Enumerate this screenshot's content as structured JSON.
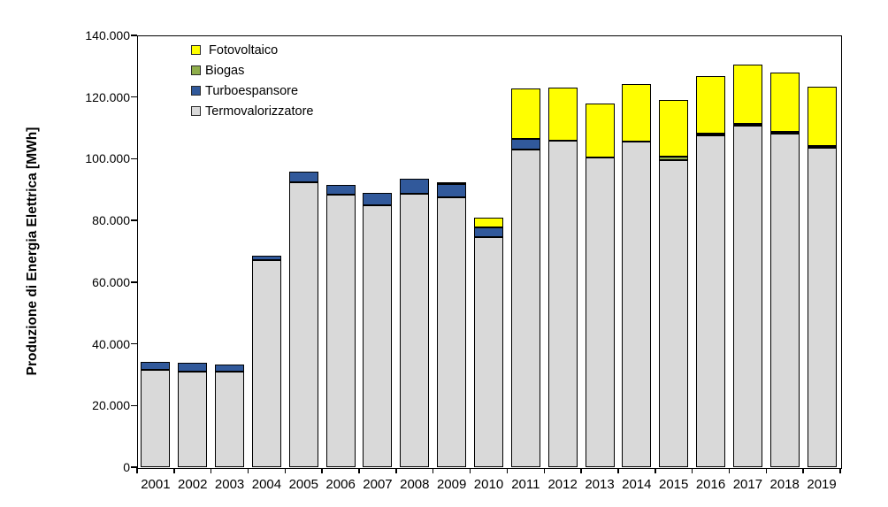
{
  "chart_data": {
    "type": "bar",
    "stacked": true,
    "title": "",
    "xlabel": "",
    "ylabel": "Produzione di Energia Elettrica [MWh]",
    "ylim": [
      0,
      140000
    ],
    "ytick_step": 20000,
    "grid": false,
    "background_color": "#FFFFFF",
    "bar_outline_color": "#000000",
    "axis_color": "#000000",
    "yticks": [
      {
        "value": 0,
        "label": "0"
      },
      {
        "value": 20000,
        "label": "20.000"
      },
      {
        "value": 40000,
        "label": "40.000"
      },
      {
        "value": 60000,
        "label": "60.000"
      },
      {
        "value": 80000,
        "label": "80.000"
      },
      {
        "value": 100000,
        "label": "100.000"
      },
      {
        "value": 120000,
        "label": "120.000"
      },
      {
        "value": 140000,
        "label": "140.000"
      }
    ],
    "categories": [
      "2001",
      "2002",
      "2003",
      "2004",
      "2005",
      "2006",
      "2007",
      "2008",
      "2009",
      "2010",
      "2011",
      "2012",
      "2013",
      "2014",
      "2015",
      "2016",
      "2017",
      "2018",
      "2019"
    ],
    "series": [
      {
        "name": "Termovalorizzatore",
        "color": "#D9D9D9",
        "values": [
          31500,
          31000,
          31000,
          67000,
          92300,
          88500,
          85000,
          88700,
          87600,
          74700,
          103100,
          105900,
          100500,
          105600,
          99500,
          107500,
          110700,
          108100,
          103500
        ]
      },
      {
        "name": "Turboespansore",
        "color": "#31599B",
        "values": [
          2700,
          2800,
          2400,
          1500,
          3500,
          3100,
          4000,
          4800,
          4100,
          3100,
          3400,
          0,
          0,
          0,
          0,
          0,
          0,
          0,
          0
        ]
      },
      {
        "name": "Biogas",
        "color": "#8FAE4B",
        "values": [
          0,
          0,
          0,
          0,
          0,
          0,
          0,
          0,
          0,
          0,
          0,
          0,
          0,
          0,
          1200,
          600,
          500,
          500,
          400
        ]
      },
      {
        "name": "Fotovoltaico",
        "color": "#FFFF00",
        "values": [
          0,
          0,
          0,
          0,
          0,
          0,
          0,
          0,
          600,
          3100,
          16300,
          17200,
          17500,
          18600,
          18400,
          18600,
          19300,
          19400,
          19300
        ]
      }
    ],
    "legend": {
      "position": "top-left-inside",
      "items": [
        {
          "label": " Fotovoltaico",
          "series": "Fotovoltaico"
        },
        {
          "label": "Biogas",
          "series": "Biogas"
        },
        {
          "label": "Turboespansore",
          "series": "Turboespansore"
        },
        {
          "label": "Termovalorizzatore",
          "series": "Termovalorizzatore"
        }
      ]
    }
  }
}
